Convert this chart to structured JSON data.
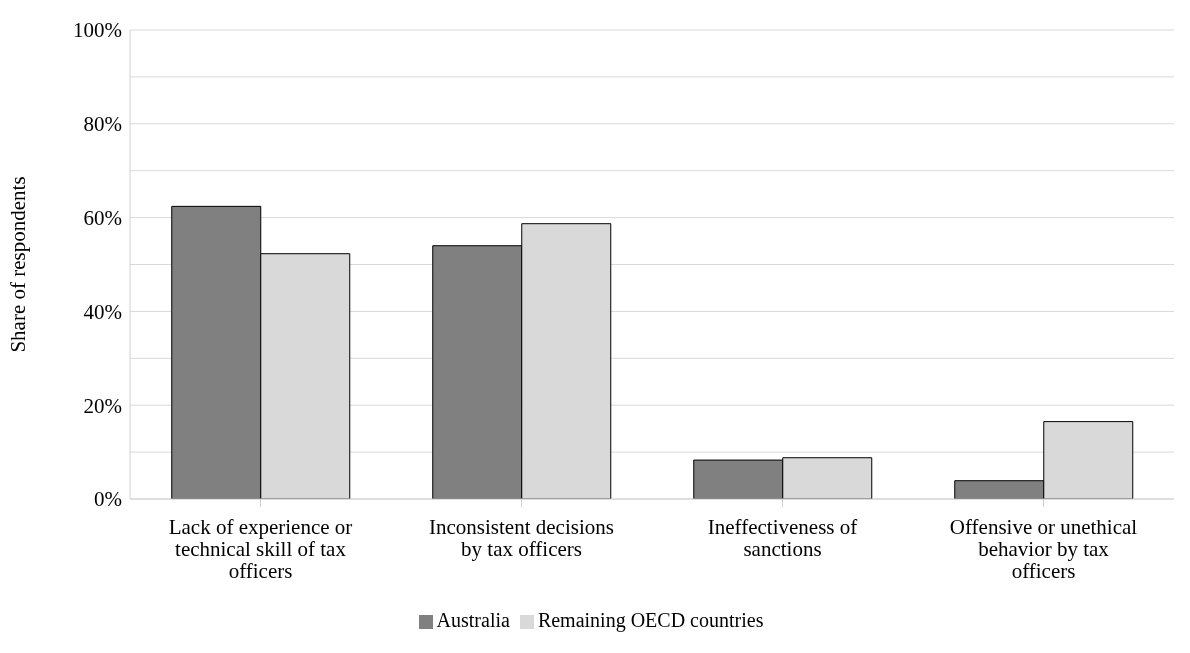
{
  "chart_data": {
    "type": "bar",
    "ylabel": "Share of respondents",
    "categories": [
      "Lack of experience or technical skill of tax officers",
      "Inconsistent decisions by tax officers",
      "Ineffectiveness of sanctions",
      "Offensive or unethical behavior by tax officers"
    ],
    "series": [
      {
        "name": "Australia",
        "color": "#808080",
        "values": [
          62.4,
          54.0,
          8.3,
          3.9
        ]
      },
      {
        "name": "Remaining OECD countries",
        "color": "#d9d9d9",
        "values": [
          52.3,
          58.7,
          8.8,
          16.5
        ]
      }
    ],
    "ylim": [
      0,
      100
    ],
    "yticks": [
      {
        "value": 0,
        "label": "0%"
      },
      {
        "value": 10,
        "label": null
      },
      {
        "value": 20,
        "label": "20%"
      },
      {
        "value": 30,
        "label": null
      },
      {
        "value": 40,
        "label": "40%"
      },
      {
        "value": 50,
        "label": null
      },
      {
        "value": 60,
        "label": "60%"
      },
      {
        "value": 70,
        "label": null
      },
      {
        "value": 80,
        "label": "80%"
      },
      {
        "value": 90,
        "label": null
      },
      {
        "value": 100,
        "label": "100%"
      }
    ],
    "grid": "y",
    "legend": "bottom"
  }
}
